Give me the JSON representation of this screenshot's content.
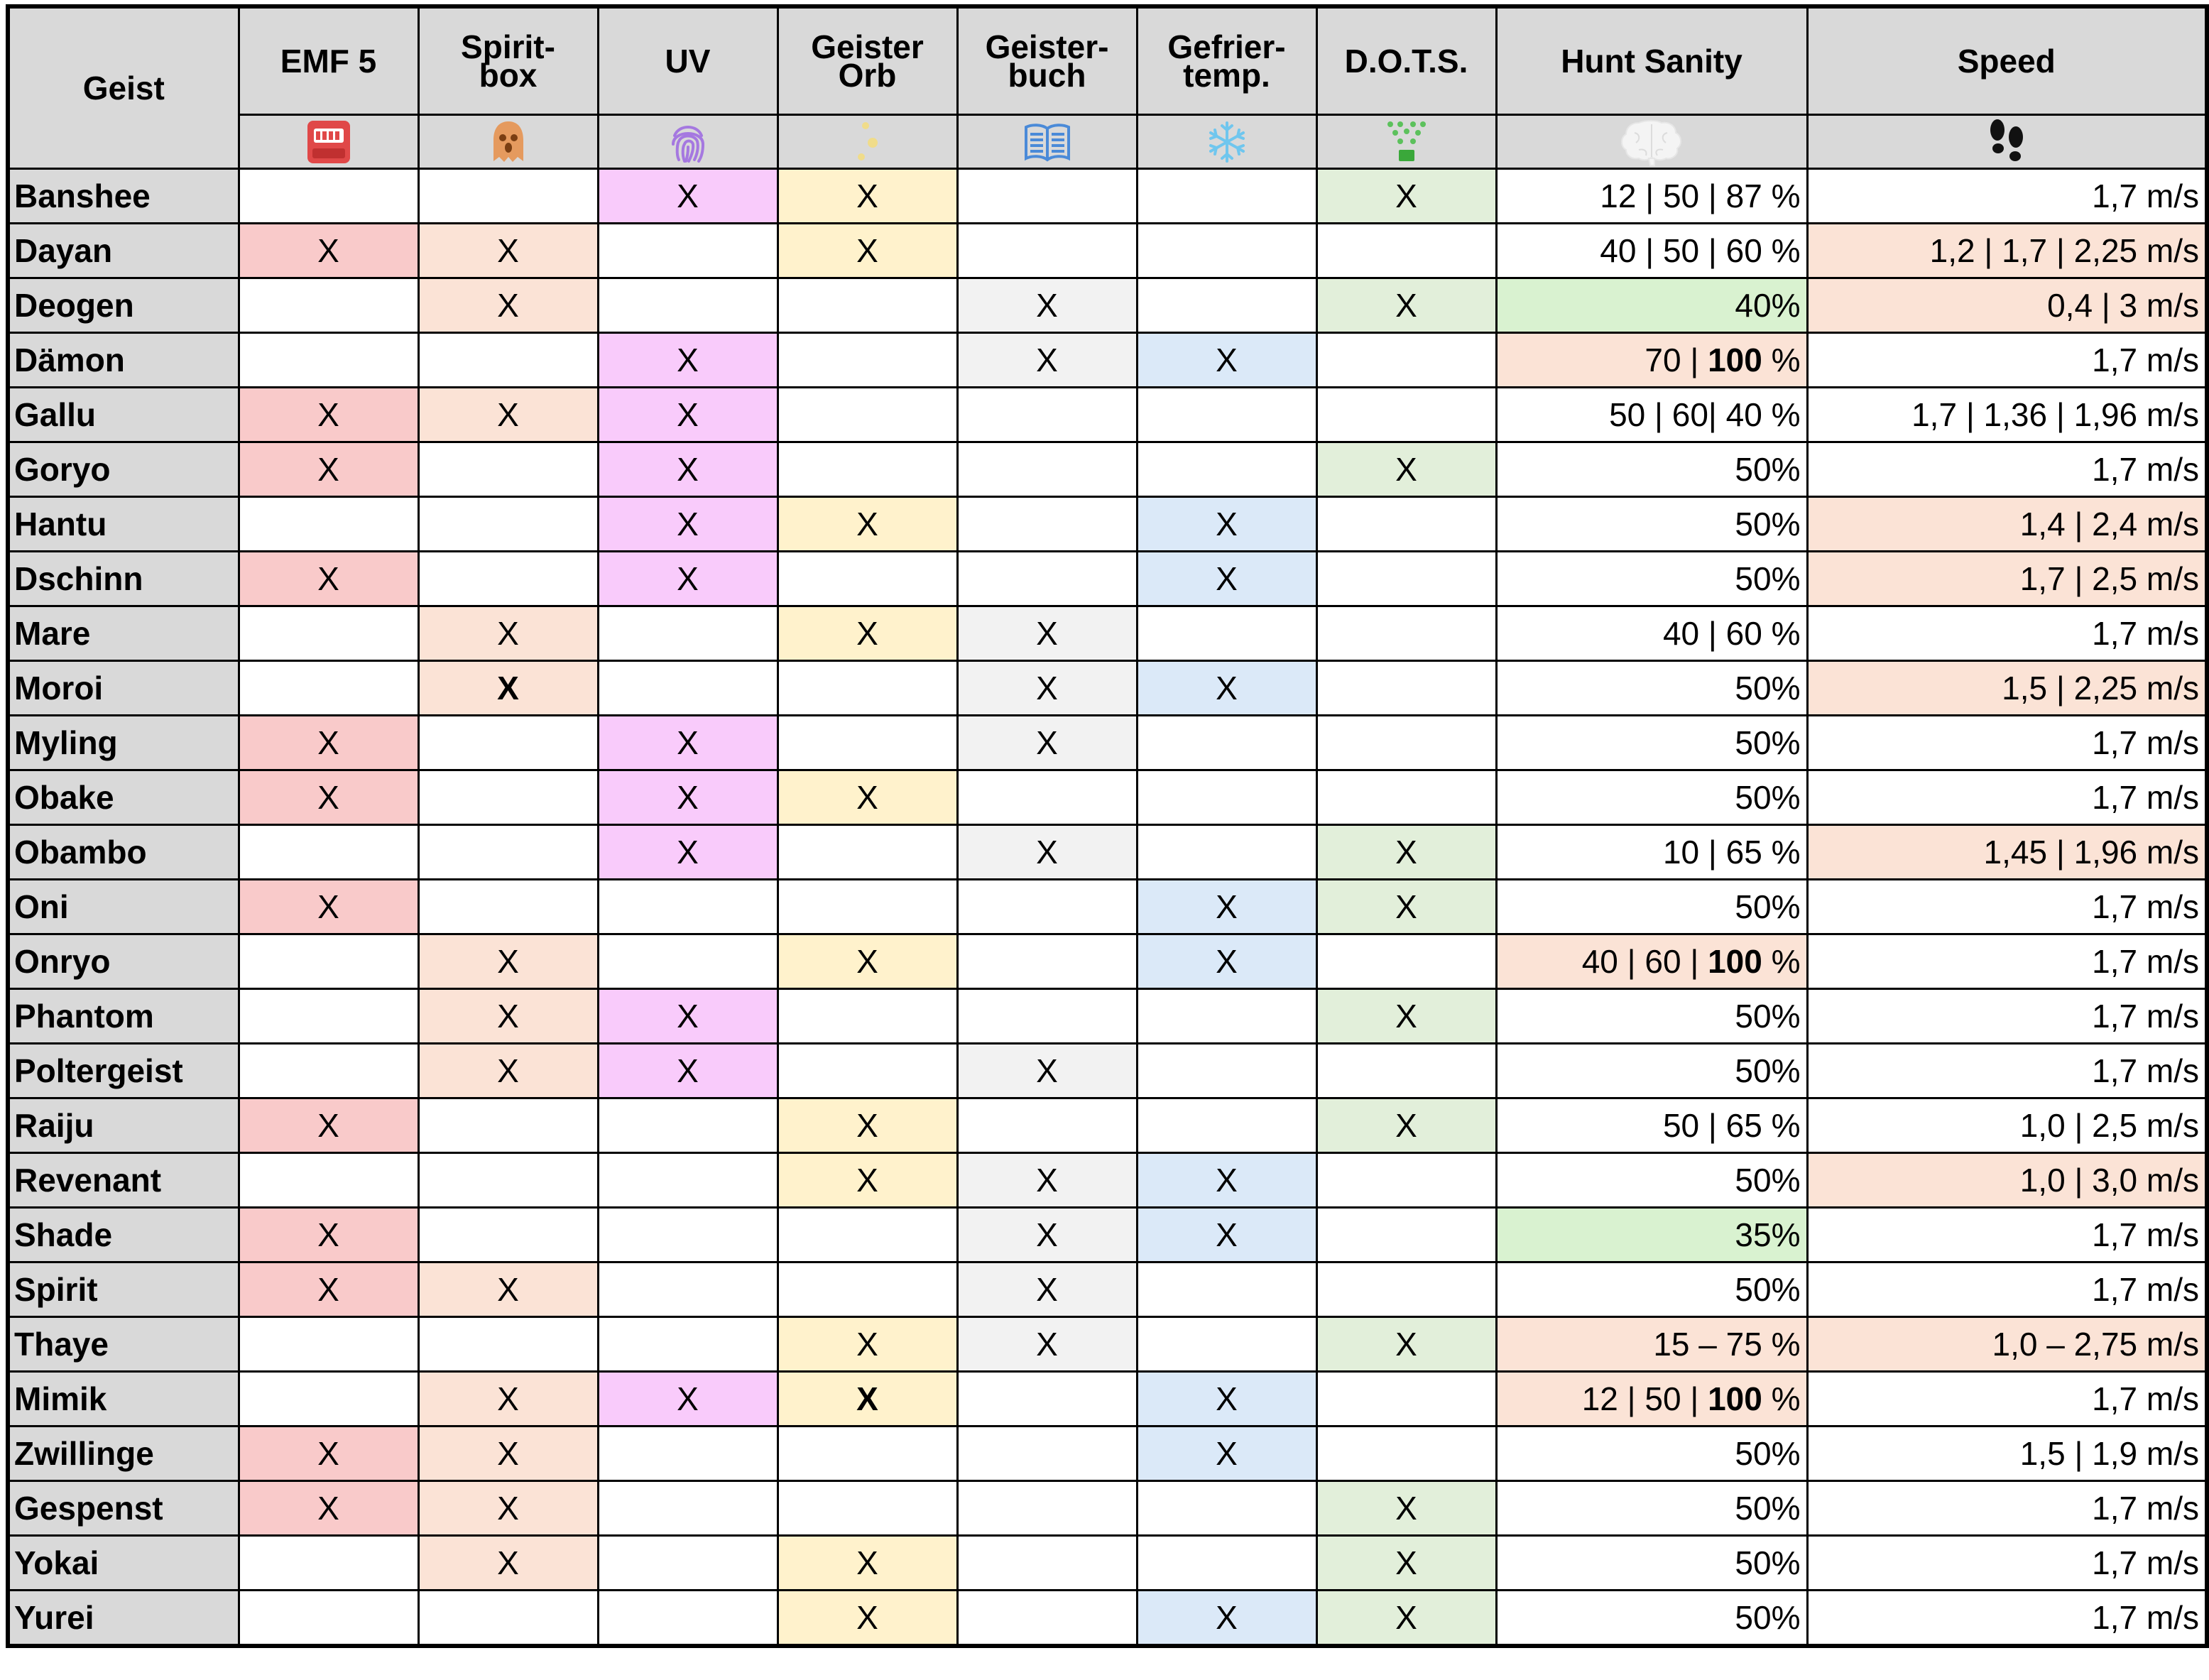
{
  "columns": {
    "ghost": "Geist",
    "emf": "EMF 5",
    "spirit_box": [
      "Spirit-",
      "box"
    ],
    "uv": "UV",
    "orb": [
      "Geister",
      "Orb"
    ],
    "book": [
      "Geister-",
      "buch"
    ],
    "freezing": [
      "Gefrier-",
      "temp."
    ],
    "dots": "D.O.T.S.",
    "hunt": "Hunt Sanity",
    "speed": "Speed"
  },
  "icons": {
    "emf": "emf-reader-icon",
    "spirit_box": "spirit-box-ghost-icon",
    "uv": "fingerprint-icon",
    "orb": "ghost-orb-icon",
    "book": "ghost-writing-book-icon",
    "freezing": "snowflake-icon",
    "dots": "dots-projector-icon",
    "hunt": "brain-icon",
    "speed": "footprints-icon"
  },
  "colors": {
    "header_bg": "#d9d9d9",
    "emf": "#f9caca",
    "spirit_box": "#fbe3d6",
    "uv": "#f9cbfb",
    "orb": "#fff2cc",
    "book": "#f2f2f2",
    "freezing": "#dbe9f8",
    "dots": "#e2efda",
    "hunt_low": "#d9f2d0",
    "hunt_high": "#fbe3d6",
    "speed_varies": "#fbe3d6"
  },
  "ghosts": [
    {
      "name": "Banshee",
      "emf": "",
      "box": "",
      "uv": "X",
      "orb": "X",
      "book": "",
      "freeze": "",
      "dots": "X",
      "hunt": [
        "12 | 50 | 87 %"
      ],
      "hunt_hl": "",
      "speed": "1,7 m/s",
      "speed_hl": false
    },
    {
      "name": "Dayan",
      "emf": "X",
      "box": "X",
      "uv": "",
      "orb": "X",
      "book": "",
      "freeze": "",
      "dots": "",
      "hunt": [
        "40 | 50 | 60 %"
      ],
      "hunt_hl": "",
      "speed": "1,2 | 1,7 | 2,25 m/s",
      "speed_hl": true
    },
    {
      "name": "Deogen",
      "emf": "",
      "box": "X",
      "uv": "",
      "orb": "",
      "book": "X",
      "freeze": "",
      "dots": "X",
      "hunt": [
        "40%"
      ],
      "hunt_hl": "low",
      "speed": "0,4 | 3 m/s",
      "speed_hl": true
    },
    {
      "name": "Dämon",
      "emf": "",
      "box": "",
      "uv": "X",
      "orb": "",
      "book": "X",
      "freeze": "X",
      "dots": "",
      "hunt": [
        "70 | ",
        "100",
        " %"
      ],
      "hunt_hl": "high",
      "speed": "1,7 m/s",
      "speed_hl": false
    },
    {
      "name": "Gallu",
      "emf": "X",
      "box": "X",
      "uv": "X",
      "orb": "",
      "book": "",
      "freeze": "",
      "dots": "",
      "hunt": [
        "50 | 60| 40 %"
      ],
      "hunt_hl": "",
      "speed": "1,7 | 1,36 | 1,96 m/s",
      "speed_hl": false
    },
    {
      "name": "Goryo",
      "emf": "X",
      "box": "",
      "uv": "X",
      "orb": "",
      "book": "",
      "freeze": "",
      "dots": "X",
      "hunt": [
        "50%"
      ],
      "hunt_hl": "",
      "speed": "1,7 m/s",
      "speed_hl": false
    },
    {
      "name": "Hantu",
      "emf": "",
      "box": "",
      "uv": "X",
      "orb": "X",
      "book": "",
      "freeze": "X",
      "dots": "",
      "hunt": [
        "50%"
      ],
      "hunt_hl": "",
      "speed": "1,4 | 2,4 m/s",
      "speed_hl": true
    },
    {
      "name": "Dschinn",
      "emf": "X",
      "box": "",
      "uv": "X",
      "orb": "",
      "book": "",
      "freeze": "X",
      "dots": "",
      "hunt": [
        "50%"
      ],
      "hunt_hl": "",
      "speed": "1,7 | 2,5 m/s",
      "speed_hl": true
    },
    {
      "name": "Mare",
      "emf": "",
      "box": "X",
      "uv": "",
      "orb": "X",
      "book": "X",
      "freeze": "",
      "dots": "",
      "hunt": [
        "40 | 60 %"
      ],
      "hunt_hl": "",
      "speed": "1,7 m/s",
      "speed_hl": false
    },
    {
      "name": "Moroi",
      "emf": "",
      "box": "X",
      "box_bold": true,
      "uv": "",
      "orb": "",
      "book": "X",
      "freeze": "X",
      "dots": "",
      "hunt": [
        "50%"
      ],
      "hunt_hl": "",
      "speed": "1,5 | 2,25 m/s",
      "speed_hl": true
    },
    {
      "name": "Myling",
      "emf": "X",
      "box": "",
      "uv": "X",
      "orb": "",
      "book": "X",
      "freeze": "",
      "dots": "",
      "hunt": [
        "50%"
      ],
      "hunt_hl": "",
      "speed": "1,7 m/s",
      "speed_hl": false
    },
    {
      "name": "Obake",
      "emf": "X",
      "box": "",
      "uv": "X",
      "orb": "X",
      "book": "",
      "freeze": "",
      "dots": "",
      "hunt": [
        "50%"
      ],
      "hunt_hl": "",
      "speed": "1,7 m/s",
      "speed_hl": false
    },
    {
      "name": "Obambo",
      "emf": "",
      "box": "",
      "uv": "X",
      "orb": "",
      "book": "X",
      "freeze": "",
      "dots": "X",
      "hunt": [
        "10 | 65 %"
      ],
      "hunt_hl": "",
      "speed": "1,45 | 1,96 m/s",
      "speed_hl": true
    },
    {
      "name": "Oni",
      "emf": "X",
      "box": "",
      "uv": "",
      "orb": "",
      "book": "",
      "freeze": "X",
      "dots": "X",
      "hunt": [
        "50%"
      ],
      "hunt_hl": "",
      "speed": "1,7 m/s",
      "speed_hl": false
    },
    {
      "name": "Onryo",
      "emf": "",
      "box": "X",
      "uv": "",
      "orb": "X",
      "book": "",
      "freeze": "X",
      "dots": "",
      "hunt": [
        "40 | 60 | ",
        "100",
        " %"
      ],
      "hunt_hl": "high",
      "speed": "1,7 m/s",
      "speed_hl": false
    },
    {
      "name": "Phantom",
      "emf": "",
      "box": "X",
      "uv": "X",
      "orb": "",
      "book": "",
      "freeze": "",
      "dots": "X",
      "hunt": [
        "50%"
      ],
      "hunt_hl": "",
      "speed": "1,7 m/s",
      "speed_hl": false
    },
    {
      "name": "Poltergeist",
      "emf": "",
      "box": "X",
      "uv": "X",
      "orb": "",
      "book": "X",
      "freeze": "",
      "dots": "",
      "hunt": [
        "50%"
      ],
      "hunt_hl": "",
      "speed": "1,7 m/s",
      "speed_hl": false
    },
    {
      "name": "Raiju",
      "emf": "X",
      "box": "",
      "uv": "",
      "orb": "X",
      "book": "",
      "freeze": "",
      "dots": "X",
      "hunt": [
        "50 | 65 %"
      ],
      "hunt_hl": "",
      "speed": "1,0 | 2,5 m/s",
      "speed_hl": false
    },
    {
      "name": "Revenant",
      "emf": "",
      "box": "",
      "uv": "",
      "orb": "X",
      "book": "X",
      "freeze": "X",
      "dots": "",
      "hunt": [
        "50%"
      ],
      "hunt_hl": "",
      "speed": "1,0 | 3,0 m/s",
      "speed_hl": true
    },
    {
      "name": "Shade",
      "emf": "X",
      "box": "",
      "uv": "",
      "orb": "",
      "book": "X",
      "freeze": "X",
      "dots": "",
      "hunt": [
        "35%"
      ],
      "hunt_hl": "low",
      "speed": "1,7 m/s",
      "speed_hl": false
    },
    {
      "name": "Spirit",
      "emf": "X",
      "box": "X",
      "uv": "",
      "orb": "",
      "book": "X",
      "freeze": "",
      "dots": "",
      "hunt": [
        "50%"
      ],
      "hunt_hl": "",
      "speed": "1,7 m/s",
      "speed_hl": false
    },
    {
      "name": "Thaye",
      "emf": "",
      "box": "",
      "uv": "",
      "orb": "X",
      "book": "X",
      "freeze": "",
      "dots": "X",
      "hunt": [
        "15 – 75 %"
      ],
      "hunt_hl": "high",
      "speed": "1,0 – 2,75 m/s",
      "speed_hl": true
    },
    {
      "name": "Mimik",
      "emf": "",
      "box": "X",
      "uv": "X",
      "orb": "X",
      "orb_bold": true,
      "book": "",
      "freeze": "X",
      "dots": "",
      "hunt": [
        "12 | 50 | ",
        "100",
        " %"
      ],
      "hunt_hl": "high",
      "speed": "1,7 m/s",
      "speed_hl": false
    },
    {
      "name": "Zwillinge",
      "emf": "X",
      "box": "X",
      "uv": "",
      "orb": "",
      "book": "",
      "freeze": "X",
      "dots": "",
      "hunt": [
        "50%"
      ],
      "hunt_hl": "",
      "speed": "1,5 | 1,9 m/s",
      "speed_hl": false
    },
    {
      "name": "Gespenst",
      "emf": "X",
      "box": "X",
      "uv": "",
      "orb": "",
      "book": "",
      "freeze": "",
      "dots": "X",
      "hunt": [
        "50%"
      ],
      "hunt_hl": "",
      "speed": "1,7 m/s",
      "speed_hl": false
    },
    {
      "name": "Yokai",
      "emf": "",
      "box": "X",
      "uv": "",
      "orb": "X",
      "book": "",
      "freeze": "",
      "dots": "X",
      "hunt": [
        "50%"
      ],
      "hunt_hl": "",
      "speed": "1,7 m/s",
      "speed_hl": false
    },
    {
      "name": "Yurei",
      "emf": "",
      "box": "",
      "uv": "",
      "orb": "X",
      "book": "",
      "freeze": "X",
      "dots": "X",
      "hunt": [
        "50%"
      ],
      "hunt_hl": "",
      "speed": "1,7 m/s",
      "speed_hl": false
    }
  ]
}
